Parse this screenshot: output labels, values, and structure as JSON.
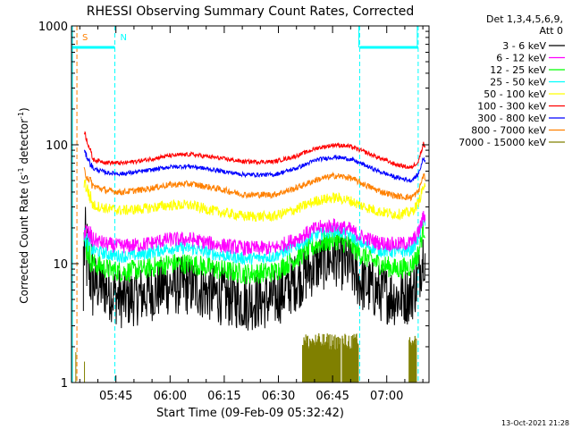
{
  "chart_data": {
    "type": "line",
    "title": "RHESSI Observing Summary Count Rates, Corrected",
    "xlabel": "Start Time (09-Feb-09 05:32:42)",
    "ylabel_main": "Corrected Count Rate (s",
    "ylabel_sup1": "-1",
    "ylabel_mid": " detector",
    "ylabel_sup2": "-1",
    "ylabel_end": ")",
    "yscale": "log",
    "ylim": [
      1,
      1000
    ],
    "xlim_minutes": [
      0,
      99
    ],
    "x_ticks": [
      {
        "label": "05:45",
        "minute": 12.3
      },
      {
        "label": "06:00",
        "minute": 27.3
      },
      {
        "label": "06:15",
        "minute": 42.3
      },
      {
        "label": "06:30",
        "minute": 57.3
      },
      {
        "label": "06:45",
        "minute": 72.3
      },
      {
        "label": "07:00",
        "minute": 87.3
      }
    ],
    "y_ticks": [
      {
        "label": "1",
        "value": 1
      },
      {
        "label": "10",
        "value": 10
      },
      {
        "label": "100",
        "value": 100
      },
      {
        "label": "1000",
        "value": 1000
      }
    ],
    "legend_header": [
      "Det 1,3,4,5,6,9,",
      "Att 0"
    ],
    "series": [
      {
        "name": "3 - 6 keV",
        "color": "#000000",
        "noise": 0.28,
        "data": [
          [
            3.5,
            14
          ],
          [
            6,
            7
          ],
          [
            10,
            6
          ],
          [
            14,
            5
          ],
          [
            20,
            5.5
          ],
          [
            27,
            6.5
          ],
          [
            33,
            6.5
          ],
          [
            40,
            5.5
          ],
          [
            48,
            4.8
          ],
          [
            56,
            5
          ],
          [
            62,
            7
          ],
          [
            68,
            10
          ],
          [
            73,
            11.5
          ],
          [
            77,
            9.5
          ],
          [
            80,
            7
          ],
          [
            85,
            5.8
          ],
          [
            90,
            5.2
          ],
          [
            94,
            5.5
          ],
          [
            96,
            7.5
          ],
          [
            97.5,
            13
          ],
          [
            98,
            11
          ]
        ]
      },
      {
        "name": "6 - 12 keV",
        "color": "#ff00ff",
        "noise": 0.07,
        "data": [
          [
            3.5,
            19
          ],
          [
            6,
            16
          ],
          [
            10,
            14.5
          ],
          [
            14,
            14
          ],
          [
            20,
            14.5
          ],
          [
            27,
            16
          ],
          [
            33,
            16
          ],
          [
            40,
            14.5
          ],
          [
            48,
            13.5
          ],
          [
            56,
            13.5
          ],
          [
            62,
            16
          ],
          [
            68,
            20
          ],
          [
            73,
            21
          ],
          [
            77,
            19.5
          ],
          [
            80,
            17
          ],
          [
            85,
            15
          ],
          [
            90,
            14.5
          ],
          [
            94,
            15
          ],
          [
            96,
            18
          ],
          [
            97.5,
            25
          ],
          [
            98,
            24
          ]
        ]
      },
      {
        "name": "12 - 25 keV",
        "color": "#00ff00",
        "noise": 0.1,
        "data": [
          [
            3.5,
            16
          ],
          [
            6,
            10
          ],
          [
            10,
            9
          ],
          [
            14,
            8.5
          ],
          [
            20,
            9
          ],
          [
            27,
            10
          ],
          [
            33,
            10
          ],
          [
            40,
            9
          ],
          [
            48,
            8.2
          ],
          [
            56,
            8.5
          ],
          [
            62,
            11
          ],
          [
            68,
            14.5
          ],
          [
            73,
            16
          ],
          [
            77,
            14.5
          ],
          [
            80,
            12
          ],
          [
            85,
            10
          ],
          [
            90,
            9
          ],
          [
            94,
            9.5
          ],
          [
            96,
            12
          ],
          [
            97.5,
            20
          ],
          [
            98,
            19
          ]
        ]
      },
      {
        "name": "25 - 50 keV",
        "color": "#00ffff",
        "noise": 0.06,
        "data": [
          [
            3.5,
            17
          ],
          [
            6,
            13
          ],
          [
            10,
            12
          ],
          [
            14,
            11.5
          ],
          [
            20,
            12
          ],
          [
            27,
            13.5
          ],
          [
            33,
            13.5
          ],
          [
            40,
            12
          ],
          [
            48,
            11
          ],
          [
            56,
            11.5
          ],
          [
            62,
            14
          ],
          [
            68,
            17.5
          ],
          [
            73,
            19
          ],
          [
            77,
            17.5
          ],
          [
            80,
            15
          ],
          [
            85,
            13
          ],
          [
            90,
            12.5
          ],
          [
            94,
            13
          ],
          [
            96,
            16
          ],
          [
            97.5,
            24
          ],
          [
            98,
            23
          ]
        ]
      },
      {
        "name": "50 - 100 keV",
        "color": "#ffff00",
        "noise": 0.05,
        "data": [
          [
            3.5,
            50
          ],
          [
            6,
            31
          ],
          [
            10,
            29
          ],
          [
            14,
            28
          ],
          [
            20,
            29
          ],
          [
            27,
            31
          ],
          [
            33,
            31
          ],
          [
            40,
            27.5
          ],
          [
            48,
            25
          ],
          [
            56,
            25
          ],
          [
            62,
            28.5
          ],
          [
            68,
            34
          ],
          [
            73,
            36
          ],
          [
            77,
            34
          ],
          [
            80,
            31
          ],
          [
            85,
            27.5
          ],
          [
            90,
            26
          ],
          [
            94,
            27
          ],
          [
            96,
            32
          ],
          [
            97.5,
            45
          ],
          [
            98,
            42
          ]
        ]
      },
      {
        "name": "100 - 300 keV",
        "color": "#ff0000",
        "noise": 0.02,
        "data": [
          [
            3.5,
            130
          ],
          [
            6,
            75
          ],
          [
            10,
            71
          ],
          [
            14,
            70
          ],
          [
            20,
            74
          ],
          [
            27,
            81
          ],
          [
            33,
            83
          ],
          [
            40,
            78
          ],
          [
            48,
            72
          ],
          [
            56,
            72
          ],
          [
            62,
            80
          ],
          [
            68,
            94
          ],
          [
            73,
            100
          ],
          [
            77,
            97
          ],
          [
            80,
            90
          ],
          [
            85,
            78
          ],
          [
            90,
            68
          ],
          [
            94,
            64
          ],
          [
            96,
            72
          ],
          [
            97.5,
            103
          ],
          [
            98,
            95
          ]
        ]
      },
      {
        "name": "300 - 800 keV",
        "color": "#0000ff",
        "noise": 0.02,
        "data": [
          [
            3.5,
            88
          ],
          [
            6,
            63
          ],
          [
            10,
            58
          ],
          [
            14,
            57
          ],
          [
            20,
            60
          ],
          [
            27,
            65
          ],
          [
            33,
            66
          ],
          [
            40,
            61
          ],
          [
            48,
            56
          ],
          [
            56,
            56
          ],
          [
            62,
            63
          ],
          [
            68,
            75
          ],
          [
            73,
            79
          ],
          [
            77,
            76
          ],
          [
            80,
            70
          ],
          [
            85,
            60
          ],
          [
            90,
            53
          ],
          [
            94,
            50
          ],
          [
            96,
            56
          ],
          [
            97.5,
            78
          ],
          [
            98,
            72
          ]
        ]
      },
      {
        "name": "800 - 7000 keV",
        "color": "#ff8000",
        "noise": 0.03,
        "data": [
          [
            3.5,
            60
          ],
          [
            6,
            45
          ],
          [
            10,
            41
          ],
          [
            14,
            40
          ],
          [
            20,
            42
          ],
          [
            27,
            46
          ],
          [
            33,
            47
          ],
          [
            40,
            43
          ],
          [
            48,
            38
          ],
          [
            56,
            38
          ],
          [
            62,
            43
          ],
          [
            68,
            51
          ],
          [
            73,
            55
          ],
          [
            77,
            53
          ],
          [
            80,
            48
          ],
          [
            85,
            41
          ],
          [
            90,
            37
          ],
          [
            94,
            36
          ],
          [
            96,
            40
          ],
          [
            97.5,
            56
          ],
          [
            98,
            52
          ]
        ]
      },
      {
        "name": "7000 - 15000 keV",
        "color": "#808000",
        "noise": 0,
        "data": []
      }
    ],
    "bursts_7000_15000": {
      "color": "#808000",
      "ranges_minutes": [
        [
          64,
          74.5
        ],
        [
          75,
          79
        ],
        [
          78.5,
          79.5
        ],
        [
          93.5,
          95.5
        ]
      ],
      "peak_counts": 2.6
    },
    "vertical_markers": [
      {
        "label": "S",
        "minute": 1.5,
        "color": "#ff8000"
      },
      {
        "label": "N",
        "minute": 12.0,
        "color": "#00ffff"
      },
      {
        "label": "",
        "minute": 79.8,
        "color": "#00ffff"
      },
      {
        "label": "",
        "minute": 96.0,
        "color": "#00ffff"
      }
    ],
    "flag_bars": [
      {
        "from_minute": 0,
        "to_minute": 12.0,
        "value": 660,
        "color": "#00ffff"
      },
      {
        "from_minute": 79.8,
        "to_minute": 96.0,
        "value": 660,
        "color": "#00ffff"
      }
    ],
    "timestamp": "13-Oct-2021 21:28"
  }
}
